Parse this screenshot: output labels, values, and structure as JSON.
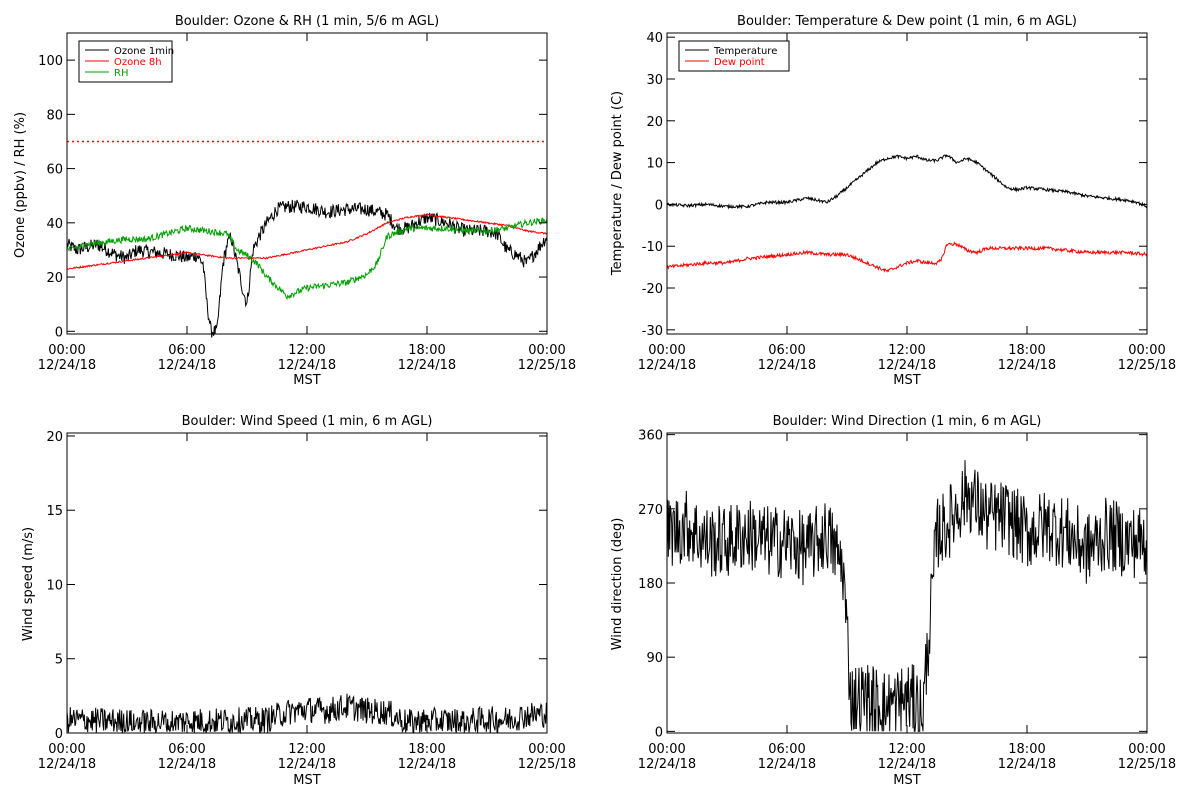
{
  "chart_data": [
    {
      "type": "line",
      "title": "Boulder: Ozone & RH (1 min, 5/6 m AGL)",
      "ylabel": "Ozone (ppbv) / RH (%)",
      "xlabel": "MST",
      "ylim": [
        -1,
        110
      ],
      "yticks": [
        0,
        20,
        40,
        60,
        80,
        100
      ],
      "xlim": [
        0,
        24
      ],
      "xtick_hours": [
        0,
        6,
        12,
        18,
        24
      ],
      "xtick_labels": [
        [
          "00:00",
          "12/24/18"
        ],
        [
          "06:00",
          "12/24/18"
        ],
        [
          "12:00",
          "12/24/18"
        ],
        [
          "18:00",
          "12/24/18"
        ],
        [
          "00:00",
          "12/25/18"
        ]
      ],
      "legend": {
        "placement": "top-left",
        "entries": [
          "Ozone 1min",
          "Ozone 8h",
          "RH"
        ]
      },
      "series": [
        {
          "name": "Ozone 1min",
          "color": "#000000",
          "noise": 2.5,
          "x": [
            0,
            0.5,
            1.5,
            2.5,
            3,
            3.5,
            4.5,
            5.5,
            6,
            6.5,
            6.8,
            7.0,
            7.2,
            7.5,
            7.8,
            8.0,
            8.2,
            8.5,
            8.8,
            9.0,
            9.3,
            9.6,
            10,
            10.5,
            11,
            12,
            13,
            14,
            15,
            16,
            16.5,
            17,
            18,
            19,
            19.5,
            20,
            21,
            21.5,
            22,
            22.5,
            23,
            23.5,
            24
          ],
          "y": [
            32,
            30,
            32,
            28,
            27,
            30,
            29,
            28,
            27,
            28,
            25,
            10,
            0,
            0,
            25,
            32,
            35,
            25,
            15,
            10,
            30,
            35,
            40,
            45,
            46,
            46,
            44,
            45,
            45,
            43,
            38,
            38,
            42,
            40,
            38,
            37,
            37,
            36,
            30,
            28,
            25,
            30,
            35
          ]
        },
        {
          "name": "Ozone 8h",
          "color": "#ff0000",
          "noise": 0.3,
          "x": [
            0,
            2,
            4,
            6,
            8,
            10,
            12,
            14,
            15,
            16,
            17,
            18,
            19,
            20,
            21,
            22,
            23,
            24
          ],
          "y": [
            23,
            25,
            27,
            29,
            27,
            27,
            30,
            33,
            36,
            40,
            42,
            43,
            42,
            41,
            40,
            39,
            37,
            36
          ]
        },
        {
          "name": "RH",
          "color": "#00a000",
          "noise": 1.2,
          "x": [
            0,
            1,
            2,
            3,
            4,
            5,
            6,
            7,
            8,
            8.5,
            9,
            9.5,
            10,
            11,
            12,
            13,
            14,
            15,
            15.5,
            16,
            17,
            18,
            19,
            20,
            21,
            22,
            23,
            24
          ],
          "y": [
            30,
            32,
            33,
            34,
            34,
            36,
            38,
            37,
            36,
            30,
            28,
            25,
            20,
            13,
            16,
            17,
            18,
            21,
            25,
            35,
            38,
            38,
            38,
            37,
            37,
            38,
            40,
            41
          ]
        }
      ],
      "reference_line": {
        "y": 70,
        "color": "#ff0000",
        "style": "dotted"
      }
    },
    {
      "type": "line",
      "title": "Boulder: Temperature & Dew point (1 min, 6 m AGL)",
      "ylabel": "Temperature / Dew point (C)",
      "xlabel": "MST",
      "ylim": [
        -31,
        41
      ],
      "yticks": [
        -30,
        -20,
        -10,
        0,
        10,
        20,
        30,
        40
      ],
      "xlim": [
        0,
        24
      ],
      "xtick_hours": [
        0,
        6,
        12,
        18,
        24
      ],
      "xtick_labels": [
        [
          "00:00",
          "12/24/18"
        ],
        [
          "06:00",
          "12/24/18"
        ],
        [
          "12:00",
          "12/24/18"
        ],
        [
          "18:00",
          "12/24/18"
        ],
        [
          "00:00",
          "12/25/18"
        ]
      ],
      "legend": {
        "placement": "top-left",
        "entries": [
          "Temperature",
          "Dew point"
        ]
      },
      "series": [
        {
          "name": "Temperature",
          "color": "#000000",
          "noise": 0.35,
          "x": [
            0,
            1,
            2,
            3,
            4,
            5,
            6,
            7,
            7.5,
            8,
            8.5,
            9,
            9.5,
            10,
            10.5,
            11,
            11.5,
            12,
            12.5,
            13,
            13.5,
            14,
            14.5,
            15,
            15.5,
            16,
            16.5,
            17,
            17.5,
            18,
            19,
            20,
            21,
            22,
            23,
            23.5,
            24
          ],
          "y": [
            0,
            -0.3,
            0,
            -0.5,
            -0.5,
            0.5,
            0.5,
            1.5,
            1,
            0.5,
            2,
            4,
            6,
            8,
            10,
            11,
            11.5,
            11,
            11.5,
            10.5,
            10.5,
            11.8,
            10,
            11,
            10,
            8,
            6,
            4,
            3.5,
            4,
            3.5,
            3,
            2,
            1.5,
            1,
            0.5,
            -0.5
          ]
        },
        {
          "name": "Dew point",
          "color": "#ff0000",
          "noise": 0.4,
          "x": [
            0,
            1,
            2,
            3,
            4,
            5,
            6,
            7,
            8,
            9,
            9.5,
            10,
            10.5,
            11,
            11.5,
            12,
            12.5,
            13,
            13.5,
            13.7,
            14,
            14.5,
            15,
            15.5,
            16,
            17,
            18,
            19,
            20,
            21,
            22,
            23,
            24
          ],
          "y": [
            -15,
            -14.5,
            -14,
            -14,
            -13,
            -12.5,
            -12,
            -11.5,
            -12,
            -12,
            -13,
            -14,
            -15,
            -16,
            -15,
            -14,
            -13.5,
            -14,
            -14,
            -13.5,
            -9.5,
            -9.5,
            -11,
            -11.5,
            -10.5,
            -10.5,
            -10.5,
            -10.5,
            -11,
            -11.5,
            -11.5,
            -11.5,
            -12
          ]
        }
      ]
    },
    {
      "type": "line",
      "title": "Boulder: Wind Speed (1 min, 6 m AGL)",
      "ylabel": "Wind speed (m/s)",
      "xlabel": "MST",
      "ylim": [
        0,
        20.2
      ],
      "yticks": [
        0,
        5,
        10,
        15,
        20
      ],
      "xlim": [
        0,
        24
      ],
      "xtick_hours": [
        0,
        6,
        12,
        18,
        24
      ],
      "xtick_labels": [
        [
          "00:00",
          "12/24/18"
        ],
        [
          "06:00",
          "12/24/18"
        ],
        [
          "12:00",
          "12/24/18"
        ],
        [
          "18:00",
          "12/24/18"
        ],
        [
          "00:00",
          "12/25/18"
        ]
      ],
      "series": [
        {
          "name": "",
          "color": "#000000",
          "noise": 0.9,
          "floor": 0,
          "x": [
            0,
            2,
            4,
            6,
            8,
            10,
            11,
            12,
            13,
            14,
            15,
            16,
            17,
            18,
            19,
            20,
            21,
            22,
            23,
            24
          ],
          "y": [
            0.9,
            0.8,
            0.7,
            0.8,
            0.8,
            0.9,
            1.4,
            1.6,
            1.5,
            1.8,
            1.5,
            1.4,
            0.7,
            0.8,
            0.8,
            0.8,
            0.9,
            0.9,
            1.2,
            1.3
          ]
        }
      ]
    },
    {
      "type": "line",
      "title": "Boulder: Wind Direction (1 min, 6 m AGL)",
      "ylabel": "Wind direction (deg)",
      "xlabel": "MST",
      "ylim": [
        -2,
        362
      ],
      "yticks": [
        0,
        90,
        180,
        270,
        360
      ],
      "xlim": [
        0,
        24
      ],
      "xtick_hours": [
        0,
        6,
        12,
        18,
        24
      ],
      "xtick_labels": [
        [
          "00:00",
          "12/24/18"
        ],
        [
          "06:00",
          "12/24/18"
        ],
        [
          "12:00",
          "12/24/18"
        ],
        [
          "18:00",
          "12/24/18"
        ],
        [
          "00:00",
          "12/25/18"
        ]
      ],
      "series": [
        {
          "name": "",
          "color": "#000000",
          "noise": 45,
          "floor": 0,
          "ceil": 360,
          "x": [
            0,
            1,
            2,
            3,
            4,
            5,
            6,
            7,
            8,
            8.8,
            9.2,
            10,
            11,
            12,
            12.8,
            13.5,
            14,
            15,
            16,
            17,
            18,
            19,
            20,
            21,
            22,
            23,
            24
          ],
          "y": [
            240,
            250,
            230,
            230,
            240,
            230,
            230,
            220,
            240,
            200,
            40,
            40,
            30,
            40,
            30,
            240,
            250,
            290,
            260,
            260,
            240,
            250,
            240,
            220,
            240,
            230,
            230
          ]
        }
      ]
    }
  ]
}
